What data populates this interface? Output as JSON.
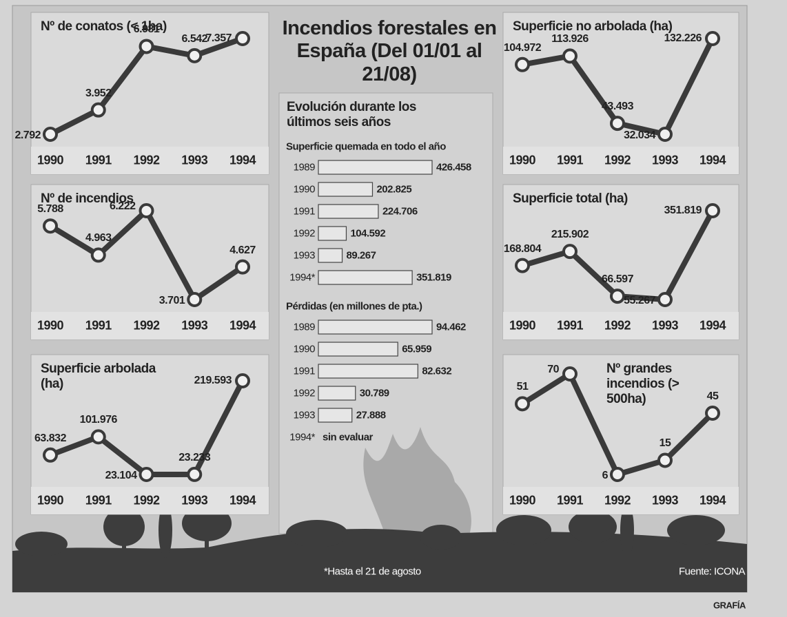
{
  "header": {
    "title": "Incendios forestales en España (Del 01/01 al 21/08)",
    "subtitle": "Evolución durante los últimos seis años"
  },
  "chart_data": [
    {
      "type": "line",
      "title": "Nº de conatos (< 1ha)",
      "categories": [
        "1990",
        "1991",
        "1992",
        "1993",
        "1994"
      ],
      "values": [
        2792,
        3952,
        6981,
        6542,
        7357
      ],
      "value_labels": [
        "2.792",
        "3.952",
        "6.981",
        "6.542",
        "7.357"
      ],
      "color": "#3a3a3a"
    },
    {
      "type": "line",
      "title": "Nº de incendios",
      "categories": [
        "1990",
        "1991",
        "1992",
        "1993",
        "1994"
      ],
      "values": [
        5788,
        4963,
        6222,
        3701,
        4627
      ],
      "value_labels": [
        "5.788",
        "4.963",
        "6.222",
        "3.701",
        "4.627"
      ],
      "color": "#3a3a3a"
    },
    {
      "type": "line",
      "title": "Superficie arbolada (ha)",
      "categories": [
        "1990",
        "1991",
        "1992",
        "1993",
        "1994"
      ],
      "values": [
        63832,
        101976,
        23104,
        23233,
        219593
      ],
      "value_labels": [
        "63.832",
        "101.976",
        "23.104",
        "23.233",
        "219.593"
      ],
      "color": "#3a3a3a"
    },
    {
      "type": "line",
      "title": "Superficie no arbolada (ha)",
      "categories": [
        "1990",
        "1991",
        "1992",
        "1993",
        "1994"
      ],
      "values": [
        104972,
        113926,
        43493,
        32034,
        132226
      ],
      "value_labels": [
        "104.972",
        "113.926",
        "43.493",
        "32.034",
        "132.226"
      ],
      "color": "#3a3a3a"
    },
    {
      "type": "line",
      "title": "Superficie total (ha)",
      "categories": [
        "1990",
        "1991",
        "1992",
        "1993",
        "1994"
      ],
      "values": [
        168804,
        215902,
        66597,
        55267,
        351819
      ],
      "value_labels": [
        "168.804",
        "215.902",
        "66.597",
        "55.267",
        "351.819"
      ],
      "color": "#3a3a3a"
    },
    {
      "type": "line",
      "title": "Nº grandes incendios (> 500ha)",
      "categories": [
        "1990",
        "1991",
        "1992",
        "1993",
        "1994"
      ],
      "values": [
        51,
        70,
        6,
        15,
        45
      ],
      "color": "#3a3a3a"
    },
    {
      "type": "bar",
      "orientation": "horizontal",
      "title": "Superficie quemada en todo el año",
      "categories": [
        "1989",
        "1990",
        "1991",
        "1992",
        "1993",
        "1994*"
      ],
      "values": [
        426458,
        202825,
        224706,
        104592,
        89267,
        351819
      ],
      "value_labels": [
        "426.458",
        "202.825",
        "224.706",
        "104.592",
        "89.267",
        "351.819"
      ],
      "color": "#e6e6e6"
    },
    {
      "type": "bar",
      "orientation": "horizontal",
      "title": "Pérdidas (en millones de pta.)",
      "categories": [
        "1989",
        "1990",
        "1991",
        "1992",
        "1993",
        "1994*"
      ],
      "values": [
        94462,
        65959,
        82632,
        30789,
        27888,
        null
      ],
      "value_labels": [
        "94.462",
        "65.959",
        "82.632",
        "30.789",
        "27.888",
        "sin evaluar"
      ],
      "color": "#e6e6e6"
    }
  ],
  "footer": {
    "note": "*Hasta el 21 de agosto",
    "source": "Fuente: ICONA",
    "credit": "GRAFÍA"
  }
}
